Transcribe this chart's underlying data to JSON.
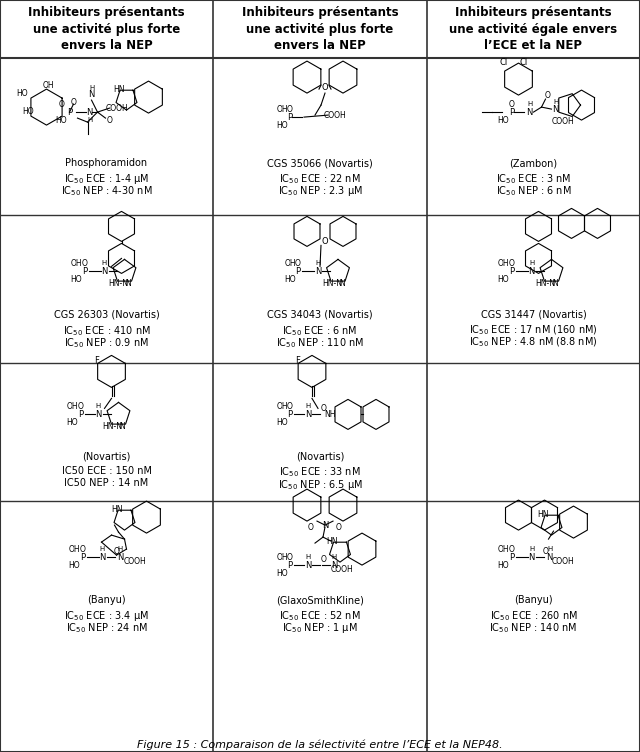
{
  "title": "Figure 15 : Comparaison de la sélectivité entre l’ECE et la NEP48.",
  "col1_header": "Inhibiteurs présentants\nune activité plus forte\nenvers la NEP",
  "col2_header": "Inhibiteurs présentants\nune activité plus forte\nenvers la NEP",
  "col3_header": "Inhibiteurs présentants\nune activité égale envers\nl’ECE et la NEP",
  "background": "#ffffff",
  "border_color": "#333333",
  "text_color": "#000000",
  "label_fontsize": 7.0,
  "header_fontsize": 8.5,
  "name_fontsize": 7.0,
  "struct_img_b64": ""
}
